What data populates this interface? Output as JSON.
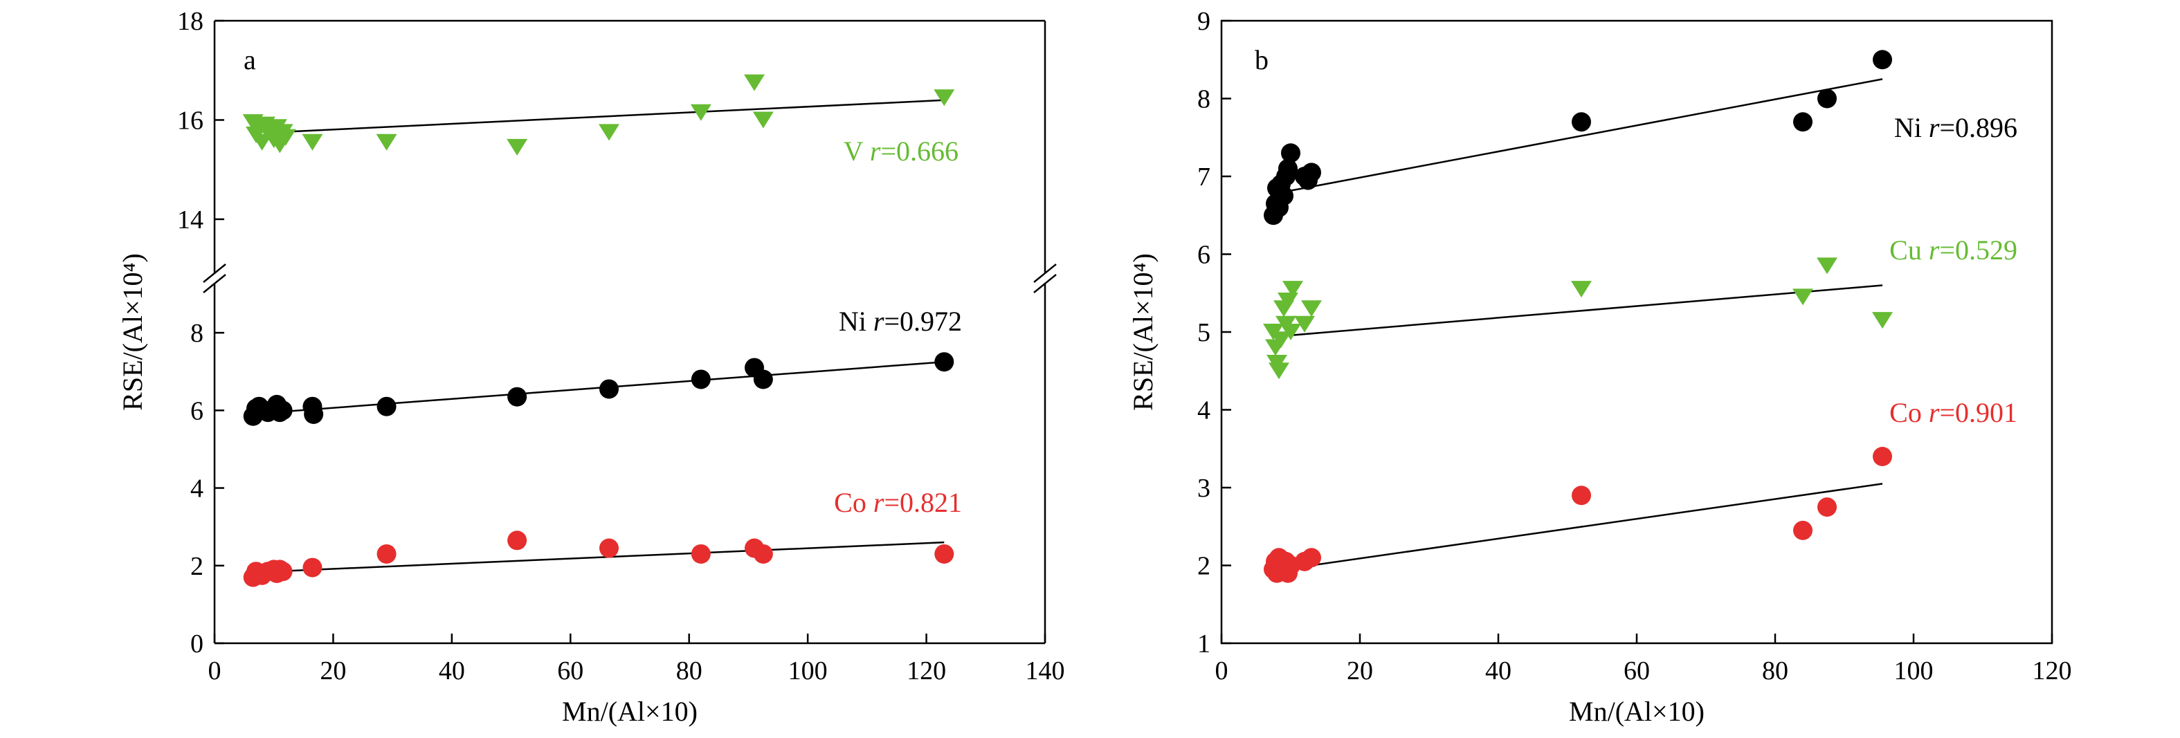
{
  "chart_data": [
    {
      "type": "scatter",
      "panel_label": "a",
      "xlabel": "Mn/(Al×10)",
      "ylabel": "RSE/(Al×10⁴)",
      "xlim": [
        0,
        140
      ],
      "x_ticks": [
        0,
        20,
        40,
        60,
        80,
        100,
        120,
        140
      ],
      "y_break": true,
      "y_lower_range": [
        0,
        9
      ],
      "y_lower_ticks": [
        0,
        2,
        4,
        6,
        8
      ],
      "y_upper_range": [
        13.4,
        18
      ],
      "y_upper_ticks": [
        14,
        16,
        18
      ],
      "grid": false,
      "legend": "none",
      "series": [
        {
          "name": "V",
          "r_text": "0.666",
          "color": "#66bb33",
          "marker": "triangle-down",
          "axis": "upper",
          "x": [
            6.5,
            7,
            7.5,
            8,
            8.5,
            9,
            10,
            10.5,
            11,
            11.5,
            12,
            16.5,
            29,
            51,
            66.5,
            82,
            91,
            92.5,
            123
          ],
          "y": [
            15.95,
            15.7,
            15.8,
            15.55,
            15.9,
            15.75,
            15.6,
            15.85,
            15.5,
            15.75,
            15.65,
            15.55,
            15.55,
            15.45,
            15.75,
            16.15,
            16.75,
            16,
            16.45
          ],
          "fit": [
            [
              10,
              15.75
            ],
            [
              123,
              16.4
            ]
          ]
        },
        {
          "name": "Ni",
          "r_text": "0.972",
          "color": "#000000",
          "marker": "circle",
          "axis": "lower",
          "x": [
            6.5,
            7,
            7.5,
            8,
            9,
            10,
            10.5,
            11,
            11.5,
            16.5,
            16.7,
            29,
            51,
            66.5,
            82,
            91,
            92.5,
            123
          ],
          "y": [
            5.85,
            6.05,
            6.1,
            6.0,
            5.95,
            6.05,
            6.15,
            5.95,
            6.0,
            6.1,
            5.9,
            6.1,
            6.35,
            6.55,
            6.8,
            7.1,
            6.8,
            7.25
          ],
          "fit": [
            [
              10,
              5.95
            ],
            [
              123,
              7.25
            ]
          ]
        },
        {
          "name": "Co",
          "r_text": "0.821",
          "color": "#e62e2e",
          "marker": "circle",
          "axis": "lower",
          "x": [
            6.5,
            7,
            7.5,
            8,
            9,
            10,
            10.5,
            11,
            11.5,
            16.5,
            29,
            51,
            66.5,
            82,
            91,
            92.5,
            123
          ],
          "y": [
            1.7,
            1.85,
            1.8,
            1.75,
            1.85,
            1.9,
            1.8,
            1.9,
            1.85,
            1.95,
            2.3,
            2.65,
            2.45,
            2.3,
            2.45,
            2.3,
            2.3
          ],
          "fit": [
            [
              10,
              1.85
            ],
            [
              123,
              2.6
            ]
          ]
        }
      ]
    },
    {
      "type": "scatter",
      "panel_label": "b",
      "xlabel": "Mn/(Al×10)",
      "ylabel": "RSE/(Al×10⁴)",
      "xlim": [
        0,
        120
      ],
      "x_ticks": [
        0,
        20,
        40,
        60,
        80,
        100,
        120
      ],
      "ylim": [
        1,
        9
      ],
      "y_ticks": [
        1,
        2,
        3,
        4,
        5,
        6,
        7,
        8,
        9
      ],
      "grid": false,
      "legend": "none",
      "series": [
        {
          "name": "Ni",
          "r_text": "0.896",
          "color": "#000000",
          "marker": "circle",
          "x": [
            7.5,
            7.8,
            8,
            8.3,
            8.6,
            9,
            9.3,
            9.6,
            10,
            12,
            12.5,
            13,
            52,
            84,
            87.5,
            95.5
          ],
          "y": [
            6.5,
            6.65,
            6.85,
            6.6,
            6.9,
            6.75,
            7.0,
            7.1,
            7.3,
            7.0,
            6.95,
            7.05,
            7.7,
            7.7,
            8.0,
            8.5
          ],
          "fit": [
            [
              9,
              6.8
            ],
            [
              95.5,
              8.25
            ]
          ]
        },
        {
          "name": "Cu",
          "r_text": "0.529",
          "color": "#66bb33",
          "marker": "triangle-down",
          "x": [
            7.5,
            7.8,
            8,
            8.3,
            8.6,
            9,
            9.3,
            9.6,
            10,
            10.3,
            12,
            13,
            52,
            84,
            87.5,
            95.5
          ],
          "y": [
            5.0,
            4.8,
            4.6,
            4.5,
            4.9,
            5.3,
            5.1,
            5.4,
            5.0,
            5.55,
            5.1,
            5.3,
            5.55,
            5.45,
            5.85,
            5.15
          ],
          "fit": [
            [
              9,
              4.95
            ],
            [
              95.5,
              5.6
            ]
          ]
        },
        {
          "name": "Co",
          "r_text": "0.901",
          "color": "#e62e2e",
          "marker": "circle",
          "x": [
            7.5,
            7.8,
            8,
            8.3,
            8.6,
            9,
            9.3,
            9.6,
            10,
            12,
            13,
            52,
            84,
            87.5,
            95.5
          ],
          "y": [
            1.95,
            2.05,
            1.9,
            2.1,
            2.0,
            1.95,
            2.05,
            1.9,
            2.0,
            2.05,
            2.1,
            2.9,
            2.45,
            2.75,
            3.4
          ],
          "fit": [
            [
              9,
              1.95
            ],
            [
              95.5,
              3.05
            ]
          ]
        }
      ]
    }
  ]
}
